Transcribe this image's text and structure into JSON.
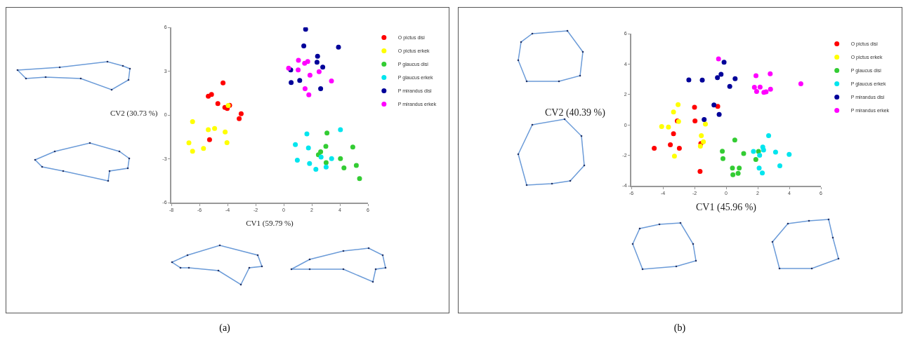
{
  "chart_data": [
    {
      "type": "scatter",
      "xlabel": "CV1 (59.79 %)",
      "ylabel": "CV2 (30.73 %)",
      "annotations": [
        "(a)"
      ],
      "xlim": [
        -8,
        6
      ],
      "xticks": [
        -8,
        -6,
        -4,
        -2,
        0,
        2,
        4,
        6
      ],
      "ylim": [
        -6,
        6
      ],
      "yticks": [
        -6,
        -3,
        0,
        3,
        6
      ],
      "grid": false,
      "legend": "top right",
      "marker": "circle",
      "series": [
        {
          "name": "O pictus disi",
          "color": "#ff0000",
          "x": [
            -4.32,
            -5.37,
            -5.14,
            -4.69,
            -4.19,
            -4.02,
            -3.85,
            -3.03,
            -3.17,
            -5.28
          ],
          "values": [
            2.2,
            1.28,
            1.41,
            0.78,
            0.52,
            0.44,
            0.66,
            0.09,
            -0.25,
            -1.69
          ]
        },
        {
          "name": "O pictus erkek",
          "color": "#ffff00",
          "x": [
            -6.49,
            -5.37,
            -4.92,
            -4.17,
            -4.04,
            -6.75,
            -6.49,
            -5.71,
            -3.95
          ],
          "values": [
            -0.46,
            -1.01,
            -0.92,
            -1.16,
            -1.9,
            -1.91,
            -2.48,
            -2.29,
            0.65
          ]
        },
        {
          "name": "P glaucus disi",
          "color": "#33cc33",
          "x": [
            3.08,
            3.0,
            2.63,
            2.47,
            3.02,
            4.04,
            4.92,
            5.17,
            4.29,
            5.4
          ],
          "values": [
            -1.23,
            -2.15,
            -2.52,
            -2.72,
            -3.26,
            -2.99,
            -2.2,
            -3.45,
            -3.62,
            -4.35
          ]
        },
        {
          "name": "P glaucus erkek",
          "color": "#00e5ee",
          "x": [
            1.65,
            0.83,
            1.76,
            2.66,
            0.97,
            1.84,
            2.29,
            3.02,
            3.41,
            4.04
          ],
          "values": [
            -1.3,
            -2.03,
            -2.25,
            -2.88,
            -3.09,
            -3.32,
            -3.72,
            -3.56,
            -2.99,
            -1.01
          ]
        },
        {
          "name": "P mirandus disi",
          "color": "#000099",
          "x": [
            1.56,
            1.43,
            3.9,
            2.41,
            2.37,
            2.78,
            0.5,
            1.14,
            0.53,
            2.63
          ],
          "values": [
            5.87,
            4.73,
            4.64,
            4.02,
            3.61,
            3.28,
            3.09,
            2.37,
            2.22,
            1.8
          ]
        },
        {
          "name": "P mirandus erkek",
          "color": "#ff00ff",
          "x": [
            1.05,
            1.49,
            1.71,
            0.35,
            1.03,
            2.52,
            1.87,
            3.4,
            1.52,
            1.79
          ],
          "values": [
            3.75,
            3.54,
            3.66,
            3.2,
            3.09,
            2.96,
            2.72,
            2.33,
            1.8,
            1.38
          ]
        }
      ]
    },
    {
      "type": "scatter",
      "xlabel": "CV1 (45.96 %)",
      "ylabel": "CV2 (40.39 %)",
      "annotations": [
        "(b)"
      ],
      "xlim": [
        -6,
        6
      ],
      "xticks": [
        -6,
        -4,
        -2,
        0,
        2,
        4,
        6
      ],
      "ylim": [
        -4,
        6
      ],
      "yticks": [
        -4,
        -2,
        0,
        2,
        4,
        6
      ],
      "grid": false,
      "legend": "top right",
      "marker": "circle",
      "series": [
        {
          "name": "O pictus disi",
          "color": "#ff0000",
          "x": [
            -0.53,
            -2.0,
            -1.97,
            -3.09,
            -3.33,
            -3.53,
            -2.96,
            -4.55,
            -1.6,
            -1.65
          ],
          "values": [
            1.22,
            1.16,
            0.26,
            0.26,
            -0.58,
            -1.3,
            -1.54,
            -1.54,
            -1.22,
            -3.05
          ]
        },
        {
          "name": "O pictus erkek",
          "color": "#ffff00",
          "x": [
            -3.04,
            -3.33,
            -3.01,
            -4.08,
            -3.65,
            -1.31,
            -1.57,
            -1.44,
            -1.63,
            -3.27
          ],
          "values": [
            1.33,
            0.85,
            0.23,
            -0.11,
            -0.14,
            0.05,
            -0.7,
            -1.11,
            -1.4,
            -2.05
          ]
        },
        {
          "name": "P glaucus disi",
          "color": "#33cc33",
          "x": [
            0.55,
            -0.24,
            -0.2,
            1.11,
            0.4,
            0.83,
            0.43,
            0.76,
            2.05,
            1.88
          ],
          "values": [
            -0.99,
            -1.73,
            -2.21,
            -1.88,
            -2.84,
            -2.84,
            -3.27,
            -3.18,
            -1.74,
            -2.27
          ]
        },
        {
          "name": "P glaucus erkek",
          "color": "#00e5ee",
          "x": [
            2.69,
            2.32,
            2.37,
            1.73,
            2.12,
            3.13,
            3.99,
            3.4,
            2.09,
            2.29
          ],
          "values": [
            -0.7,
            -1.45,
            -1.65,
            -1.74,
            -2.0,
            -1.79,
            -1.94,
            -2.69,
            -2.84,
            -3.16
          ]
        },
        {
          "name": "P mirandus disi",
          "color": "#000099",
          "x": [
            -0.13,
            -0.32,
            -0.55,
            -2.36,
            -1.51,
            0.57,
            0.23,
            -0.77,
            -0.44,
            -1.39
          ],
          "values": [
            4.12,
            3.33,
            3.11,
            2.96,
            2.95,
            3.04,
            2.53,
            1.31,
            0.69,
            0.35
          ]
        },
        {
          "name": "P mirandus erkek",
          "color": "#ff00ff",
          "x": [
            -0.48,
            1.89,
            2.79,
            4.73,
            1.79,
            2.15,
            1.93,
            2.39,
            2.53,
            2.81
          ],
          "values": [
            4.34,
            3.24,
            3.36,
            2.7,
            2.47,
            2.49,
            2.2,
            2.14,
            2.17,
            2.35
          ]
        }
      ]
    }
  ]
}
